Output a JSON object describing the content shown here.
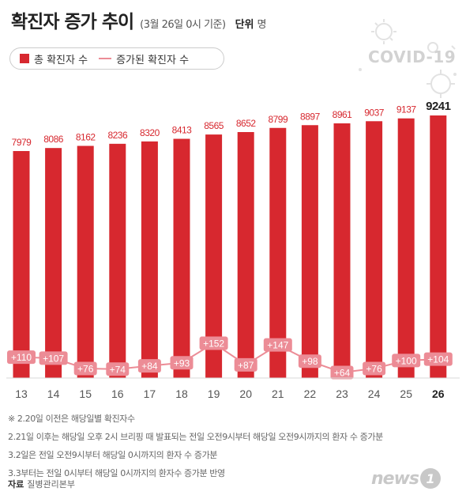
{
  "header": {
    "title": "확진자 증가 추이",
    "subtitle": "(3월 26일 0시 기준)",
    "unit_label": "단위",
    "unit_value": "명"
  },
  "legend": {
    "bar_label": "총 확진자 수",
    "line_label": "증가된 확진자 수"
  },
  "decor": {
    "covid_text": "COVID-19",
    "icon": "virus-icon"
  },
  "chart_data": {
    "type": "bar",
    "categories": [
      "13",
      "14",
      "15",
      "16",
      "17",
      "18",
      "19",
      "20",
      "21",
      "22",
      "23",
      "24",
      "25",
      "26"
    ],
    "series": [
      {
        "name": "총 확진자 수",
        "type": "bar",
        "values": [
          7979,
          8086,
          8162,
          8236,
          8320,
          8413,
          8565,
          8652,
          8799,
          8897,
          8961,
          9037,
          9137,
          9241
        ]
      },
      {
        "name": "증가된 확진자 수",
        "type": "line",
        "values": [
          110,
          107,
          76,
          74,
          84,
          93,
          152,
          87,
          147,
          98,
          64,
          76,
          100,
          104
        ],
        "labels": [
          "+110",
          "+107",
          "+76",
          "+74",
          "+84",
          "+93",
          "+152",
          "+87",
          "+147",
          "+98",
          "+64",
          "+76",
          "+100",
          "+104"
        ]
      }
    ],
    "bar_labels": [
      "7979",
      "8086",
      "8162",
      "8236",
      "8320",
      "8413",
      "8565",
      "8652",
      "8799",
      "8897",
      "8961",
      "9037",
      "9137",
      "9241"
    ],
    "highlight_last": true,
    "grid": false
  },
  "notes": [
    "※ 2.20일 이전은 해당일별 확진자수",
    "2.21일 이후는 해당일 오후 2시 브리핑 때 발표되는 전일 오전9시부터 해당일 오전9시까지의 환자 수 증가분",
    "3.2일은 전일 오전9시부터 해당일 0시까지의 환자 수 증가분",
    "3.3부터는 전일 0시부터 해당일 0시까지의 환자수 증가분 반영"
  ],
  "source": {
    "label": "자료",
    "value": "질병관리본부"
  },
  "logo": {
    "text": "news",
    "badge": "1"
  },
  "colors": {
    "bar": "#d7282f",
    "line": "#ec8c96",
    "text": "#222222"
  }
}
